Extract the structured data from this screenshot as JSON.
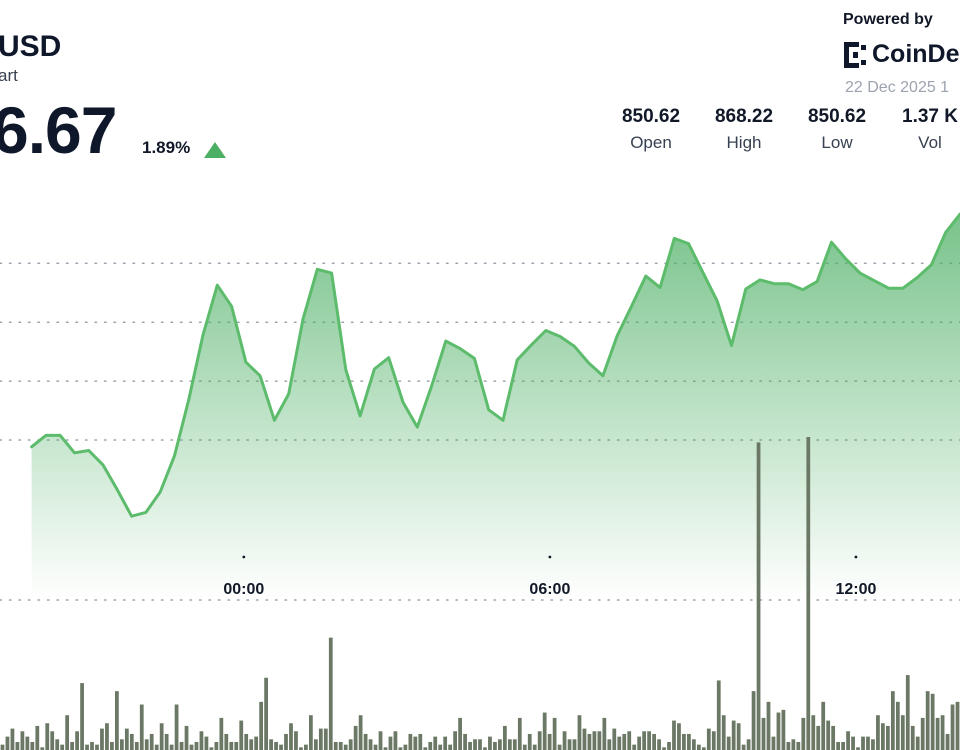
{
  "header": {
    "pair": "USD",
    "subtitle": "art",
    "price": "6.67",
    "change": "1.89%",
    "change_direction": "up",
    "up_color": "#4caf64"
  },
  "branding": {
    "powered_by": "Powered by",
    "logo_text": "CoinDe",
    "logo_icon": "coindesk-logo-icon",
    "date": "22 Dec 2025 1"
  },
  "stats": [
    {
      "value": "850.62",
      "label": "Open"
    },
    {
      "value": "868.22",
      "label": "High"
    },
    {
      "value": "850.62",
      "label": "Low"
    },
    {
      "value": "1.37 K",
      "label": "Vol"
    }
  ],
  "chart_data": {
    "type": "area",
    "series": [
      {
        "x": [
          -4.16,
          -3.88,
          -3.6,
          -3.32,
          -3.04,
          -2.76,
          -2.48,
          -2.2,
          -1.92,
          -1.64,
          -1.36,
          -1.08,
          -0.8,
          -0.52,
          -0.24,
          0.04,
          0.32,
          0.6,
          0.88,
          1.16,
          1.44,
          1.72,
          2.0,
          2.28,
          2.56,
          2.84,
          3.12,
          3.4,
          3.68,
          3.96,
          4.24,
          4.52,
          4.8,
          5.08,
          5.36,
          5.64,
          5.92,
          6.2,
          6.48,
          6.76,
          7.04,
          7.32,
          7.6,
          7.88,
          8.16,
          8.44,
          8.72,
          9.0,
          9.28,
          9.56,
          9.84,
          10.12,
          10.4,
          10.68,
          10.96,
          11.24,
          11.52,
          11.8,
          12.08,
          12.36,
          12.64,
          12.92,
          13.2,
          13.48,
          13.76,
          14.04
        ],
        "y": [
          838.0,
          839.5,
          839.5,
          837.2,
          837.5,
          835.6,
          832.3,
          828.8,
          829.3,
          832.0,
          836.8,
          844.2,
          852.8,
          859.4,
          856.6,
          849.2,
          847.4,
          841.5,
          845.0,
          854.9,
          861.5,
          861.0,
          848.2,
          842.1,
          848.3,
          849.8,
          843.9,
          840.6,
          846.0,
          852.0,
          851.0,
          849.7,
          842.9,
          841.5,
          849.5,
          851.5,
          853.4,
          852.6,
          851.3,
          849.1,
          847.4,
          852.7,
          856.6,
          860.6,
          859.1,
          865.6,
          864.9,
          861.1,
          857.3,
          851.4,
          858.9,
          860.1,
          859.6,
          859.6,
          858.8,
          859.9,
          865.1,
          862.9,
          861.0,
          860.0,
          859.0,
          859.0,
          860.4,
          862.1,
          866.4,
          868.8
        ]
      }
    ],
    "volume": [
      2,
      5,
      8,
      3,
      7,
      5,
      3,
      9,
      1,
      10,
      7,
      4,
      2,
      13,
      3,
      7,
      25,
      2,
      3,
      2,
      8,
      10,
      3,
      22,
      4,
      8,
      6,
      3,
      17,
      4,
      6,
      2,
      10,
      6,
      2,
      17,
      3,
      9,
      2,
      3,
      7,
      5,
      1,
      3,
      12,
      6,
      3,
      3,
      11,
      6,
      4,
      5,
      18,
      27,
      4,
      3,
      2,
      6,
      10,
      7,
      1,
      2,
      13,
      4,
      8,
      8,
      42,
      3,
      3,
      2,
      4,
      9,
      13,
      6,
      4,
      2,
      7,
      1,
      5,
      7,
      1,
      2,
      6,
      5,
      6,
      1,
      3,
      5,
      2,
      5,
      2,
      7,
      12,
      6,
      3,
      4,
      4,
      1,
      5,
      3,
      4,
      9,
      4,
      4,
      12,
      2,
      6,
      2,
      7,
      14,
      6,
      12,
      2,
      7,
      4,
      4,
      13,
      8,
      6,
      7,
      7,
      12,
      4,
      8,
      5,
      6,
      7,
      2,
      5,
      7,
      7,
      6,
      4,
      1,
      3,
      11,
      10,
      6,
      6,
      4,
      2,
      1,
      8,
      7,
      26,
      13,
      5,
      11,
      10,
      2,
      4,
      22,
      115,
      12,
      18,
      5,
      14,
      15,
      3,
      4,
      3,
      12,
      117,
      13,
      9,
      18,
      11,
      9,
      3,
      3,
      7,
      5,
      1,
      5,
      5,
      4,
      13,
      10,
      9,
      22,
      18,
      13,
      28,
      9,
      5,
      12,
      22,
      21,
      12,
      13,
      6,
      17,
      18
    ],
    "x_ticks": [
      {
        "value": 0,
        "label": "00:00"
      },
      {
        "value": 6,
        "label": "06:00"
      },
      {
        "value": 12,
        "label": "12:00"
      }
    ],
    "y_grid": [
      838.9,
      846.7,
      854.5,
      862.3
    ],
    "xlim": [
      -4.78,
      14.04
    ],
    "ylim": [
      817.7,
      873.6
    ],
    "volume_max": 117,
    "grid": true,
    "line_color": "#5cbc6c",
    "fill_color": "#4caf64",
    "volume_color": "#6b7865"
  }
}
